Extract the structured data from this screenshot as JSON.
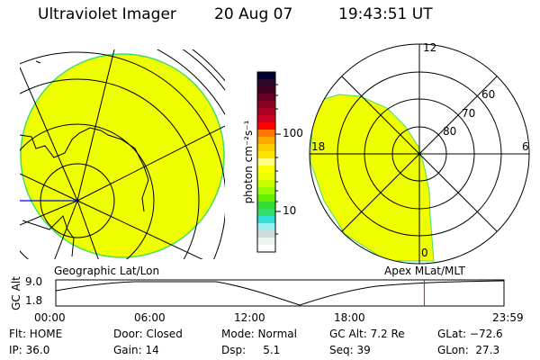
{
  "header": {
    "instrument": "Ultraviolet Imager",
    "date": "20 Aug 07",
    "time": "19:43:51 UT"
  },
  "left_panel": {
    "caption": "Geographic Lat/Lon"
  },
  "right_panel": {
    "caption": "Apex MLat/MLT",
    "mlt_labels": {
      "top": "12",
      "left": "18",
      "right": "6",
      "bottom": "0"
    },
    "lat_labels": [
      "60",
      "70",
      "80"
    ]
  },
  "colorbar": {
    "label": "photon cm⁻²s⁻¹",
    "ticks": [
      "100",
      "10"
    ],
    "colors": [
      "#000033",
      "#2a0a2a",
      "#440022",
      "#660022",
      "#880022",
      "#aa0022",
      "#cc0022",
      "#ff0000",
      "#ff7700",
      "#ffaa00",
      "#ffcc00",
      "#ffe600",
      "#ffff88",
      "#ffff00",
      "#eeff00",
      "#ccff00",
      "#99ff00",
      "#66ee00",
      "#33dd33",
      "#33dd66",
      "#33dddd",
      "#99eeee",
      "#ccdddd",
      "#eef4ee",
      "#ffffff"
    ]
  },
  "altitude_plot": {
    "ylabel": "GC Alt",
    "yticks": [
      "9.0",
      "1.8"
    ],
    "xticks": [
      "00:00",
      "06:00",
      "12:00",
      "18:00",
      "23:59"
    ],
    "current_time_hours": 19.73,
    "current_marker_color": "#ff0000"
  },
  "status": {
    "flt": "Flt: HOME",
    "ip": "IP: 36.0",
    "door": "Door: Closed",
    "gain": "Gain: 14",
    "mode": "Mode: Normal",
    "dsp": "Dsp:     5.1",
    "gcalt": "GC Alt: 7.2 Re",
    "seq": "Seq: 39",
    "glat": "GLat: −72.6",
    "glon": "GLon:  27.3"
  }
}
